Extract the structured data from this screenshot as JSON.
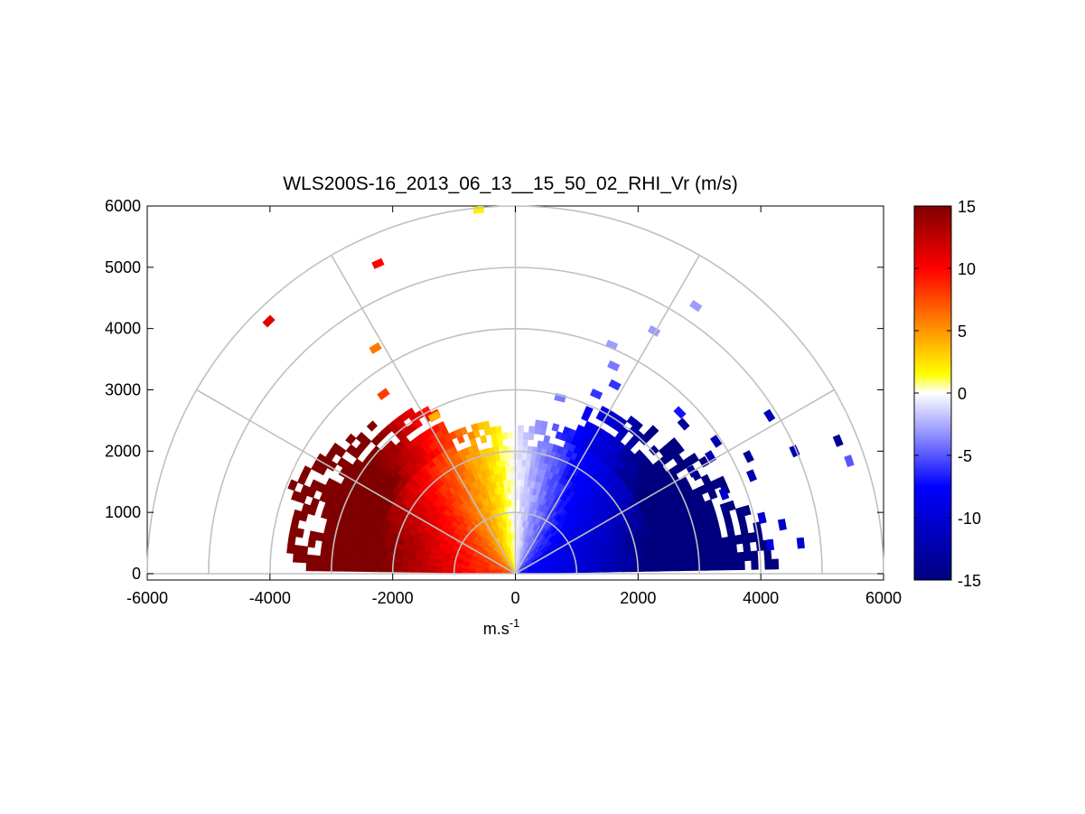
{
  "chart_data": {
    "type": "heatmap",
    "subtype": "polar RHI scan (range-height indicator)",
    "title": "WLS200S-16_2013_06_13__15_50_02_RHI_Vr (m/s)",
    "xlabel": "m.s",
    "xlabel_superscript": "-1",
    "ylabel": "",
    "xlim": [
      -6000,
      6000
    ],
    "ylim": [
      0,
      6000
    ],
    "x_ticks": [
      "-6000",
      "-4000",
      "-2000",
      "0",
      "2000",
      "4000",
      "6000"
    ],
    "x_tick_values": [
      -6000,
      -4000,
      -2000,
      0,
      2000,
      4000,
      6000
    ],
    "y_ticks": [
      "0",
      "1000",
      "2000",
      "3000",
      "4000",
      "5000",
      "6000"
    ],
    "y_tick_values": [
      0,
      1000,
      2000,
      3000,
      4000,
      5000,
      6000
    ],
    "polar_grid": {
      "range_rings": [
        1000,
        2000,
        3000,
        4000,
        5000,
        6000
      ],
      "spokes_deg": [
        0,
        30,
        60,
        90,
        120,
        150,
        180
      ]
    },
    "colorbar": {
      "range": [
        -15,
        15
      ],
      "ticks": [
        "15",
        "10",
        "5",
        "0",
        "-5",
        "-10",
        "-15"
      ],
      "tick_values": [
        15,
        10,
        5,
        0,
        -5,
        -10,
        -15
      ],
      "colormap": "white at 0, blue toward -15, yellow-orange-red toward +15"
    },
    "field_description": "Radial velocity: positive (warm colors) on the left side, negative (blue) on the right side",
    "main_field_extent": {
      "note": "dense data extends to roughly 2500 m range; scattered points beyond",
      "approx_max_range_m": 2600
    },
    "scattered_points": [
      {
        "x": -4020,
        "y": 4120,
        "vr": 11
      },
      {
        "x": -2240,
        "y": 5060,
        "vr": 10
      },
      {
        "x": -2280,
        "y": 3680,
        "vr": 6
      },
      {
        "x": -2150,
        "y": 2930,
        "vr": 8
      },
      {
        "x": -1320,
        "y": 2560,
        "vr": 4
      },
      {
        "x": -600,
        "y": 5940,
        "vr": 2
      },
      {
        "x": 2940,
        "y": 4370,
        "vr": -3
      },
      {
        "x": 2260,
        "y": 3960,
        "vr": -3
      },
      {
        "x": 1570,
        "y": 3730,
        "vr": -3
      },
      {
        "x": 1600,
        "y": 3390,
        "vr": -4
      },
      {
        "x": 1620,
        "y": 3080,
        "vr": -6
      },
      {
        "x": 1320,
        "y": 2930,
        "vr": -6
      },
      {
        "x": 730,
        "y": 2870,
        "vr": -4
      },
      {
        "x": 2680,
        "y": 2630,
        "vr": -7
      },
      {
        "x": 2740,
        "y": 2440,
        "vr": -14
      },
      {
        "x": 4140,
        "y": 2580,
        "vr": -13
      },
      {
        "x": 3270,
        "y": 2160,
        "vr": -13
      },
      {
        "x": 4550,
        "y": 2000,
        "vr": -13
      },
      {
        "x": 5260,
        "y": 2170,
        "vr": -14
      },
      {
        "x": 5440,
        "y": 1840,
        "vr": -5
      },
      {
        "x": 3800,
        "y": 1910,
        "vr": -14
      },
      {
        "x": 3180,
        "y": 1910,
        "vr": -13
      },
      {
        "x": 3850,
        "y": 1600,
        "vr": -13
      },
      {
        "x": 2880,
        "y": 1670,
        "vr": -14
      },
      {
        "x": 3400,
        "y": 1300,
        "vr": -12
      },
      {
        "x": 4020,
        "y": 910,
        "vr": -11
      },
      {
        "x": 4350,
        "y": 800,
        "vr": -12
      },
      {
        "x": 4650,
        "y": 500,
        "vr": -12
      },
      {
        "x": 4150,
        "y": 470,
        "vr": -10
      }
    ]
  }
}
